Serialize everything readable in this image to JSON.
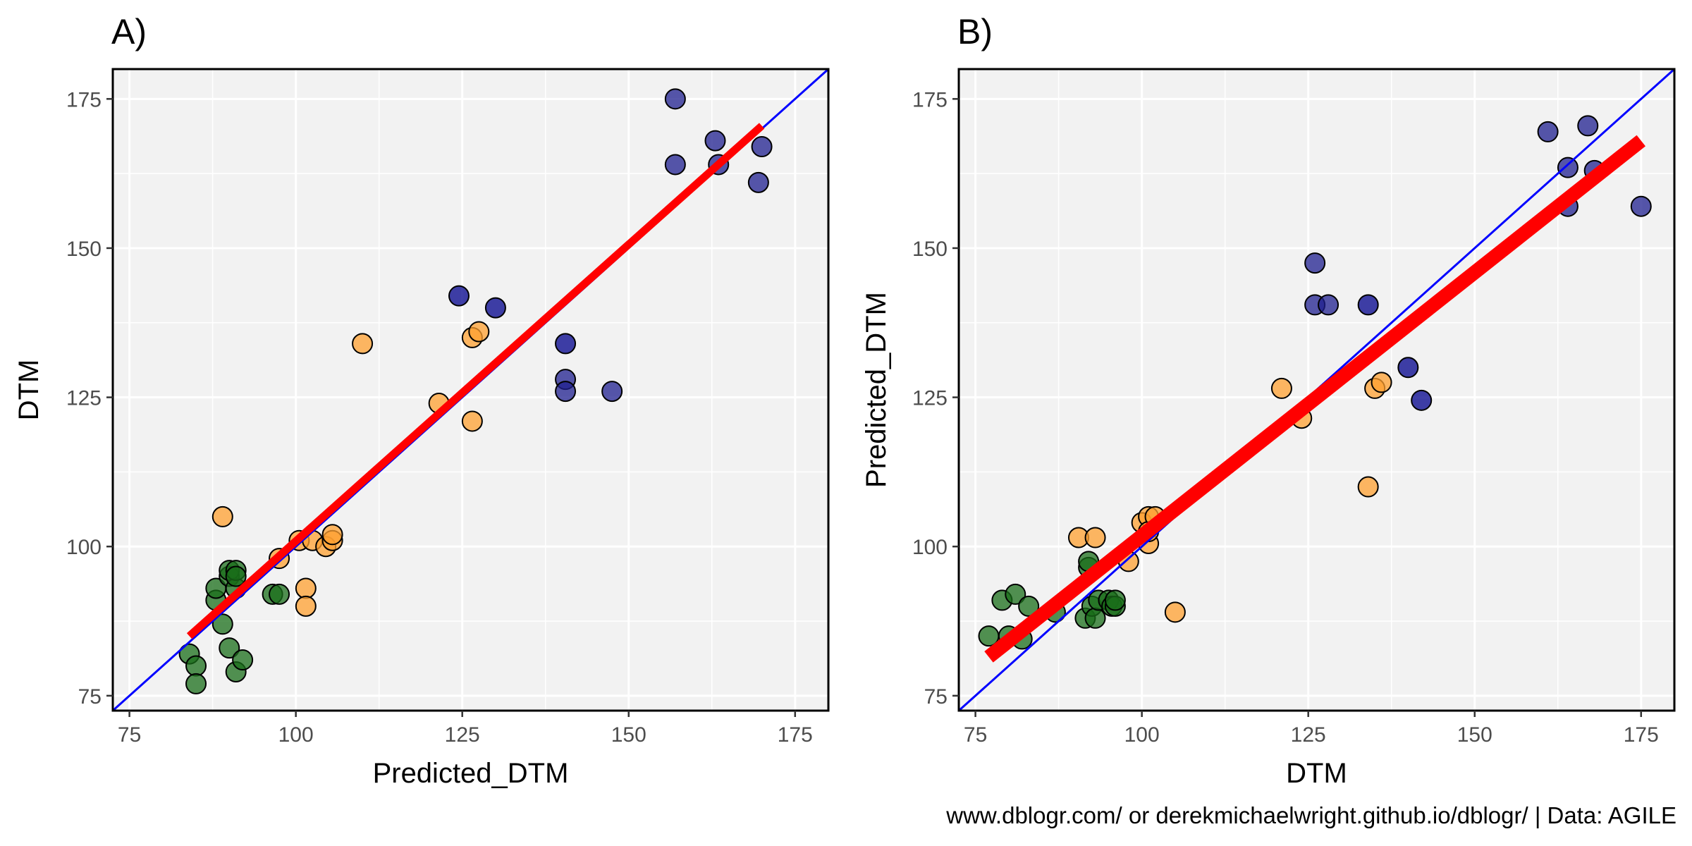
{
  "caption": "www.dblogr.com/ or derekmichaelwright.github.io/dblogr/ | Data: AGILE",
  "colors": {
    "panel_bg": "#f2f2f2",
    "grid_major": "#ffffff",
    "one_to_one_line": "#0000ff",
    "fit_line": "#ff0000",
    "point_edge": "#000000",
    "group_colors": [
      "#1a6e1a",
      "#ffa030",
      "#1f1f8f",
      "#00008b"
    ]
  },
  "chart_data": [
    {
      "type": "scatter",
      "panel_label": "A)",
      "xlabel": "Predicted_DTM",
      "ylabel": "DTM",
      "xlim": [
        72.5,
        180
      ],
      "ylim": [
        72.5,
        180
      ],
      "xticks": [
        75,
        100,
        125,
        150,
        175
      ],
      "yticks": [
        75,
        100,
        125,
        150,
        175
      ],
      "tick_labels_x": [
        "75",
        "100",
        "125",
        "150",
        "175"
      ],
      "tick_labels_y": [
        "75",
        "100",
        "125",
        "150",
        "175"
      ],
      "grid": true,
      "reference_line": {
        "kind": "1:1",
        "color": "blue"
      },
      "fit_line": {
        "x1": 84,
        "y1": 85,
        "x2": 170,
        "y2": 170.5,
        "color": "red"
      },
      "points": [
        {
          "x": 84,
          "y": 82,
          "g": 0
        },
        {
          "x": 85,
          "y": 80,
          "g": 0
        },
        {
          "x": 85,
          "y": 77,
          "g": 0
        },
        {
          "x": 88,
          "y": 91,
          "g": 0
        },
        {
          "x": 88,
          "y": 93,
          "g": 0
        },
        {
          "x": 89,
          "y": 87,
          "g": 0
        },
        {
          "x": 90,
          "y": 83,
          "g": 0
        },
        {
          "x": 90,
          "y": 95,
          "g": 0
        },
        {
          "x": 90,
          "y": 96,
          "g": 0
        },
        {
          "x": 91,
          "y": 93,
          "g": 0
        },
        {
          "x": 91,
          "y": 96,
          "g": 0
        },
        {
          "x": 91,
          "y": 95,
          "g": 0
        },
        {
          "x": 91,
          "y": 79,
          "g": 0
        },
        {
          "x": 92,
          "y": 81,
          "g": 0
        },
        {
          "x": 96.5,
          "y": 92,
          "g": 0
        },
        {
          "x": 97.5,
          "y": 92,
          "g": 0
        },
        {
          "x": 89,
          "y": 105,
          "g": 1
        },
        {
          "x": 97.5,
          "y": 98,
          "g": 1
        },
        {
          "x": 100.5,
          "y": 101,
          "g": 1
        },
        {
          "x": 101.5,
          "y": 93,
          "g": 1
        },
        {
          "x": 101.5,
          "y": 90,
          "g": 1
        },
        {
          "x": 102.5,
          "y": 101,
          "g": 1
        },
        {
          "x": 104.5,
          "y": 100,
          "g": 1
        },
        {
          "x": 105.5,
          "y": 101,
          "g": 1
        },
        {
          "x": 105.5,
          "y": 102,
          "g": 1
        },
        {
          "x": 110,
          "y": 134,
          "g": 1
        },
        {
          "x": 121.5,
          "y": 124,
          "g": 1
        },
        {
          "x": 126.5,
          "y": 135,
          "g": 1
        },
        {
          "x": 127.5,
          "y": 136,
          "g": 1
        },
        {
          "x": 126.5,
          "y": 121,
          "g": 1
        },
        {
          "x": 124.5,
          "y": 142,
          "g": 3
        },
        {
          "x": 130,
          "y": 140,
          "g": 3
        },
        {
          "x": 140.5,
          "y": 134,
          "g": 3
        },
        {
          "x": 140.5,
          "y": 128,
          "g": 2
        },
        {
          "x": 140.5,
          "y": 126,
          "g": 2
        },
        {
          "x": 147.5,
          "y": 126,
          "g": 2
        },
        {
          "x": 157,
          "y": 175,
          "g": 2
        },
        {
          "x": 157,
          "y": 164,
          "g": 2
        },
        {
          "x": 163,
          "y": 168,
          "g": 2
        },
        {
          "x": 163.5,
          "y": 164,
          "g": 2
        },
        {
          "x": 169.5,
          "y": 161,
          "g": 2
        },
        {
          "x": 170,
          "y": 167,
          "g": 2
        }
      ]
    },
    {
      "type": "scatter",
      "panel_label": "B)",
      "xlabel": "DTM",
      "ylabel": "Predicted_DTM",
      "xlim": [
        72.5,
        180
      ],
      "ylim": [
        72.5,
        180
      ],
      "xticks": [
        75,
        100,
        125,
        150,
        175
      ],
      "yticks": [
        75,
        100,
        125,
        150,
        175
      ],
      "tick_labels_x": [
        "75",
        "100",
        "125",
        "150",
        "175"
      ],
      "tick_labels_y": [
        "75",
        "100",
        "125",
        "150",
        "175"
      ],
      "grid": true,
      "reference_line": {
        "kind": "1:1",
        "color": "blue"
      },
      "fit_line": {
        "x1": 77,
        "y1": 81.5,
        "x2": 175,
        "y2": 168,
        "color": "red"
      },
      "points": [
        {
          "x": 77,
          "y": 85,
          "g": 0
        },
        {
          "x": 79,
          "y": 91,
          "g": 0
        },
        {
          "x": 80,
          "y": 85,
          "g": 0
        },
        {
          "x": 81,
          "y": 92,
          "g": 0
        },
        {
          "x": 82,
          "y": 84.5,
          "g": 0
        },
        {
          "x": 83,
          "y": 90,
          "g": 0
        },
        {
          "x": 87,
          "y": 89,
          "g": 0
        },
        {
          "x": 92,
          "y": 96.5,
          "g": 0
        },
        {
          "x": 92,
          "y": 97.5,
          "g": 0
        },
        {
          "x": 91.5,
          "y": 88,
          "g": 0
        },
        {
          "x": 92.5,
          "y": 90,
          "g": 0
        },
        {
          "x": 93,
          "y": 88,
          "g": 0
        },
        {
          "x": 93.5,
          "y": 91,
          "g": 0
        },
        {
          "x": 95,
          "y": 91,
          "g": 0
        },
        {
          "x": 95.5,
          "y": 90,
          "g": 0
        },
        {
          "x": 96,
          "y": 90,
          "g": 0
        },
        {
          "x": 96,
          "y": 91,
          "g": 0
        },
        {
          "x": 90.5,
          "y": 101.5,
          "g": 1
        },
        {
          "x": 93,
          "y": 101.5,
          "g": 1
        },
        {
          "x": 98,
          "y": 97.5,
          "g": 1
        },
        {
          "x": 100,
          "y": 104,
          "g": 1
        },
        {
          "x": 101,
          "y": 105,
          "g": 1
        },
        {
          "x": 101,
          "y": 100.5,
          "g": 1
        },
        {
          "x": 101,
          "y": 102.5,
          "g": 1
        },
        {
          "x": 102,
          "y": 105,
          "g": 1
        },
        {
          "x": 105,
          "y": 89,
          "g": 1
        },
        {
          "x": 121,
          "y": 126.5,
          "g": 1
        },
        {
          "x": 124,
          "y": 121.5,
          "g": 1
        },
        {
          "x": 134,
          "y": 110,
          "g": 1
        },
        {
          "x": 135,
          "y": 126.5,
          "g": 1
        },
        {
          "x": 136,
          "y": 127.5,
          "g": 1
        },
        {
          "x": 126,
          "y": 147.5,
          "g": 2
        },
        {
          "x": 126,
          "y": 140.5,
          "g": 2
        },
        {
          "x": 128,
          "y": 140.5,
          "g": 2
        },
        {
          "x": 134,
          "y": 140.5,
          "g": 3
        },
        {
          "x": 140,
          "y": 130,
          "g": 3
        },
        {
          "x": 142,
          "y": 124.5,
          "g": 3
        },
        {
          "x": 161,
          "y": 169.5,
          "g": 2
        },
        {
          "x": 164,
          "y": 163.5,
          "g": 2
        },
        {
          "x": 164,
          "y": 157,
          "g": 2
        },
        {
          "x": 167,
          "y": 170.5,
          "g": 2
        },
        {
          "x": 168,
          "y": 163,
          "g": 2
        },
        {
          "x": 175,
          "y": 157,
          "g": 2
        }
      ]
    }
  ]
}
